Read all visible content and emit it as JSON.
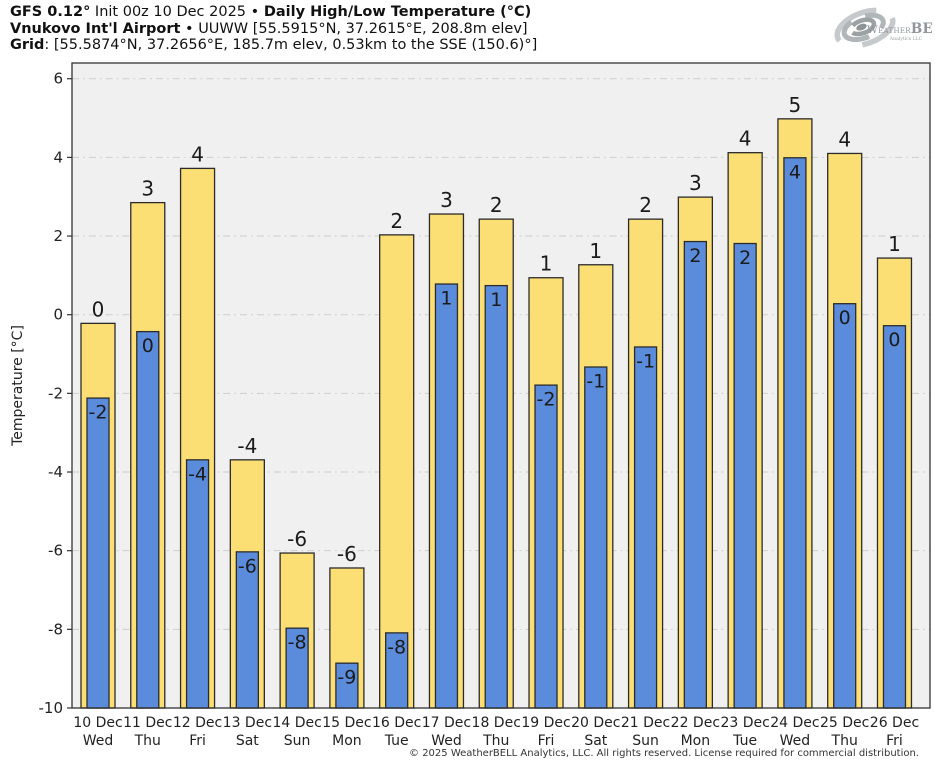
{
  "header": {
    "line1_model": "GFS 0.12°",
    "line1_mid": " Init 00z 10 Dec 2025 • ",
    "line1_title": "Daily High/Low Temperature (°C)",
    "line2_station": "Vnukovo Int'l Airport",
    "line2_rest": " • UUWW [55.5915°N, 37.2615°E, 208.8m elev]",
    "line3_label": "Grid",
    "line3_rest": ": [55.5874°N, 37.2656°E, 185.7m elev, 0.53km to the SSE (150.6)°]"
  },
  "logo": {
    "brand_small_caps": "Weather",
    "brand_bold": "BELL",
    "subtext": "Analytics LLC"
  },
  "footer": {
    "copyright": "© 2025 WeatherBELL Analytics, LLC. All rights reserved. License required for commercial distribution."
  },
  "chart_data": {
    "type": "bar",
    "title": "Daily High/Low Temperature (°C)",
    "ylabel": "Temperature [°C]",
    "ylim": [
      -10,
      6.4
    ],
    "yticks": [
      6,
      4,
      2,
      0,
      -2,
      -4,
      -6,
      -8,
      -10
    ],
    "grid": true,
    "legend": "none",
    "bar_base": -10,
    "categories": [
      {
        "date": "10 Dec",
        "weekday": "Wed"
      },
      {
        "date": "11 Dec",
        "weekday": "Thu"
      },
      {
        "date": "12 Dec",
        "weekday": "Fri"
      },
      {
        "date": "13 Dec",
        "weekday": "Sat"
      },
      {
        "date": "14 Dec",
        "weekday": "Sun"
      },
      {
        "date": "15 Dec",
        "weekday": "Mon"
      },
      {
        "date": "16 Dec",
        "weekday": "Tue"
      },
      {
        "date": "17 Dec",
        "weekday": "Wed"
      },
      {
        "date": "18 Dec",
        "weekday": "Thu"
      },
      {
        "date": "19 Dec",
        "weekday": "Fri"
      },
      {
        "date": "20 Dec",
        "weekday": "Sat"
      },
      {
        "date": "21 Dec",
        "weekday": "Sun"
      },
      {
        "date": "22 Dec",
        "weekday": "Mon"
      },
      {
        "date": "23 Dec",
        "weekday": "Tue"
      },
      {
        "date": "24 Dec",
        "weekday": "Wed"
      },
      {
        "date": "25 Dec",
        "weekday": "Thu"
      },
      {
        "date": "26 Dec",
        "weekday": "Fri"
      }
    ],
    "series": [
      {
        "name": "High",
        "labels": [
          0,
          3,
          4,
          -4,
          -6,
          -6,
          2,
          3,
          2,
          1,
          1,
          2,
          3,
          4,
          5,
          4,
          1
        ],
        "values": [
          -0.22,
          2.85,
          3.72,
          -3.69,
          -6.06,
          -6.44,
          2.03,
          2.56,
          2.43,
          0.94,
          1.27,
          2.43,
          2.99,
          4.12,
          4.98,
          4.1,
          1.44
        ]
      },
      {
        "name": "Low",
        "labels": [
          -2,
          0,
          -4,
          -6,
          -8,
          -9,
          -8,
          1,
          1,
          -2,
          -1,
          -1,
          2,
          2,
          4,
          0,
          0
        ],
        "values": [
          -2.12,
          -0.43,
          -3.69,
          -6.03,
          -7.97,
          -8.86,
          -8.09,
          0.78,
          0.74,
          -1.79,
          -1.33,
          -0.82,
          1.86,
          1.81,
          3.99,
          0.28,
          -0.28
        ]
      }
    ],
    "colors": {
      "high_fill": "#FBDF75",
      "low_fill": "#5A8CDB",
      "bar_outline": "#2B2B2B",
      "plot_bg": "#F0F0F0",
      "gridline": "#CDCDCD",
      "spine": "#333333",
      "text": "#1B1B1B",
      "tick_text": "#222222"
    }
  }
}
